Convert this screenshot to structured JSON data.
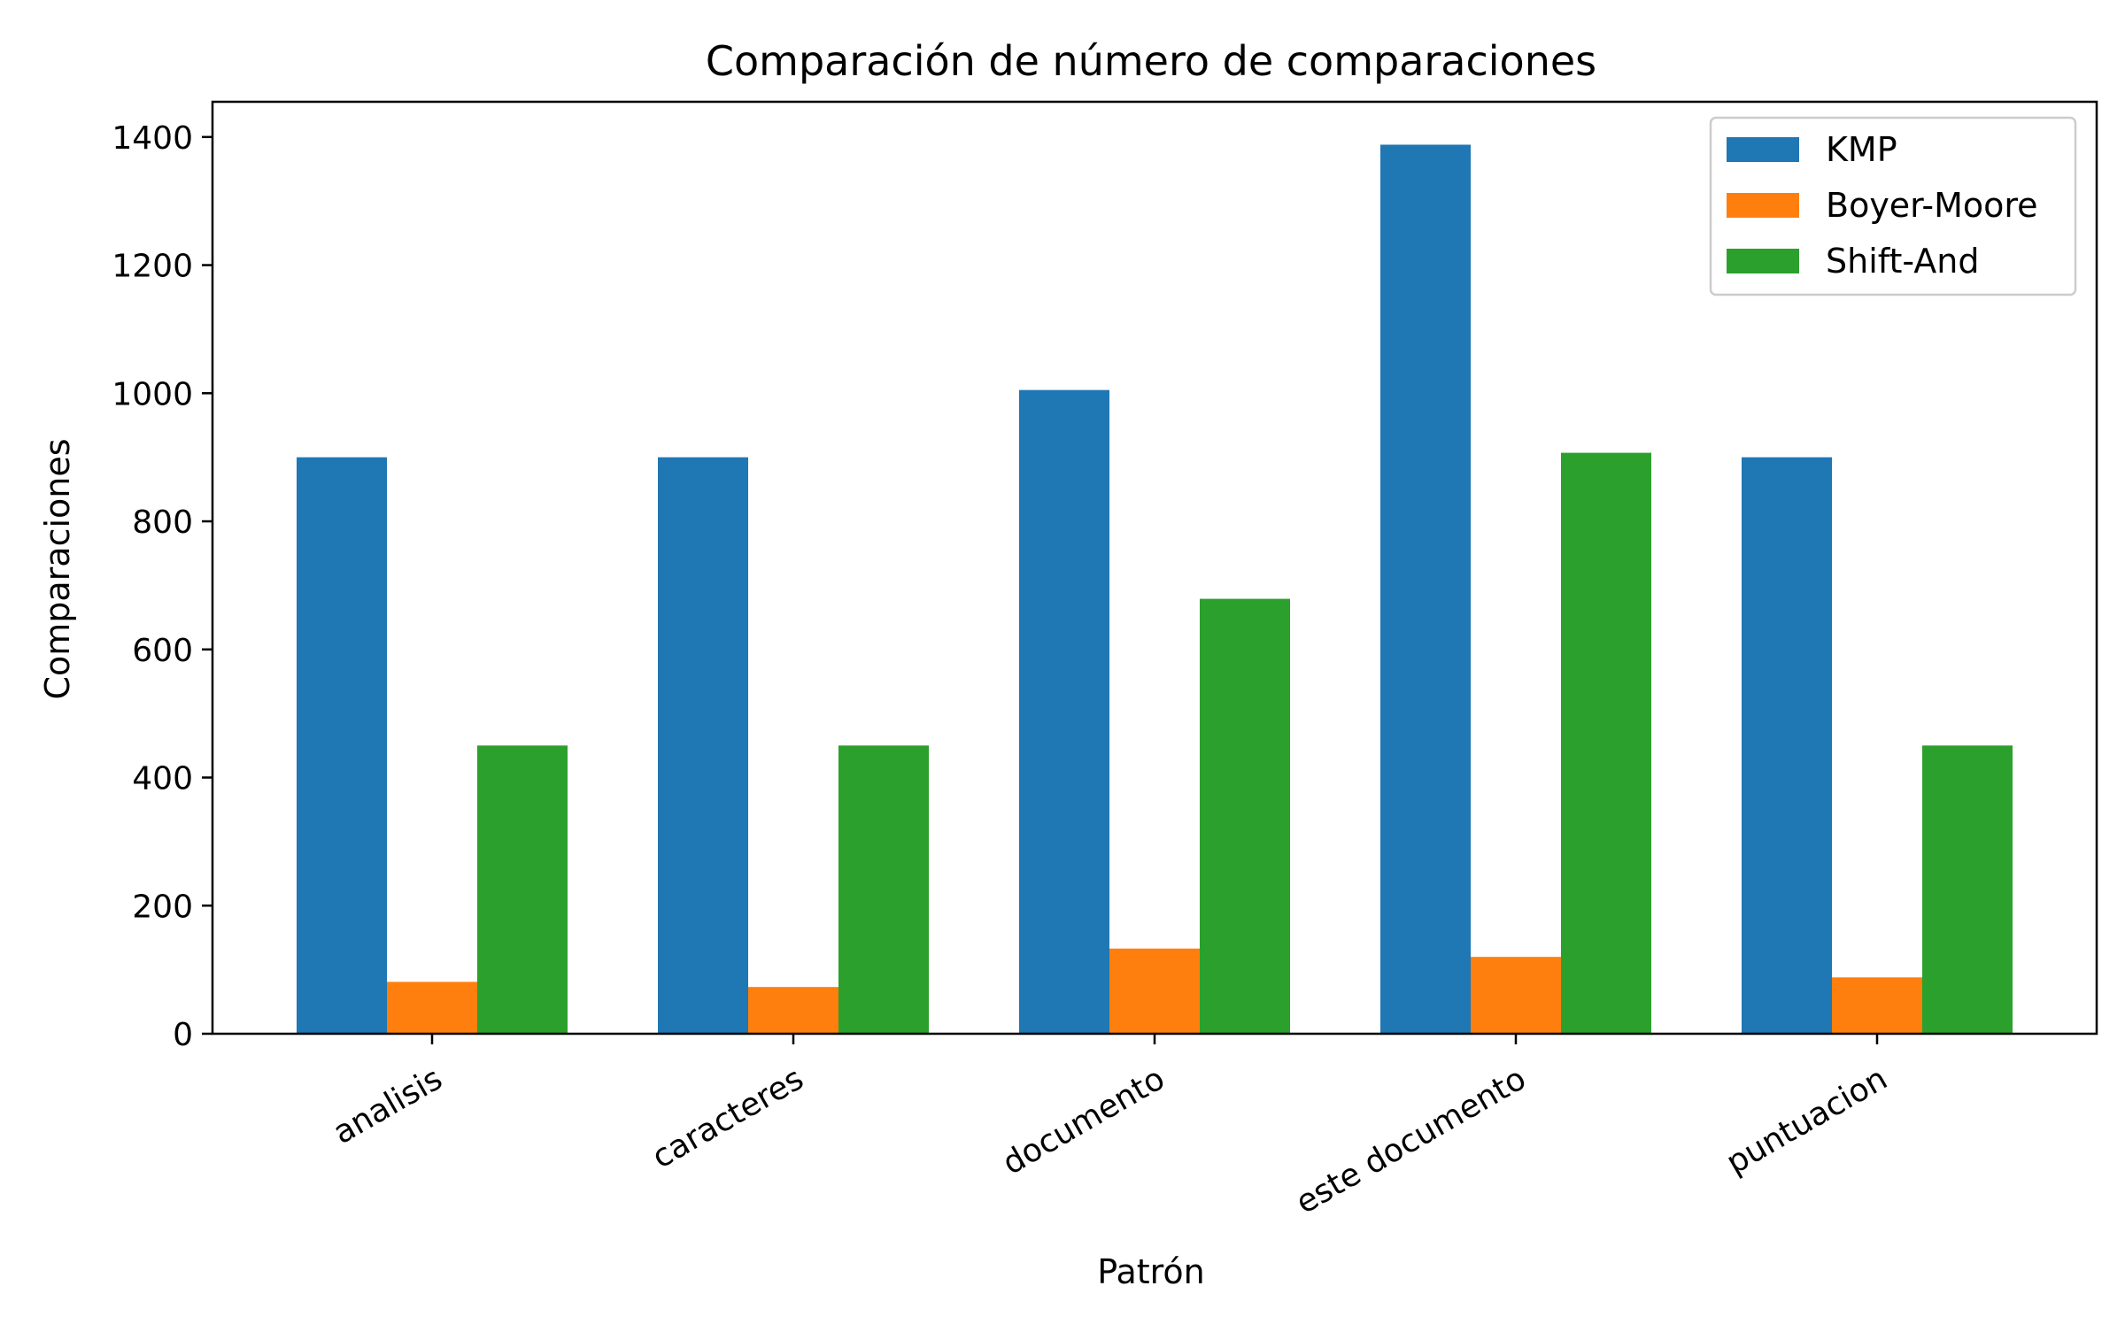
{
  "chart_data": {
    "type": "bar",
    "title": "Comparación de número de comparaciones",
    "xlabel": "Patrón",
    "ylabel": "Comparaciones",
    "categories": [
      "analisis",
      "caracteres",
      "documento",
      "este documento",
      "puntuacion"
    ],
    "ylim": [
      0,
      1455
    ],
    "yticks": [
      0,
      200,
      400,
      600,
      800,
      1000,
      1200,
      1400
    ],
    "grid": false,
    "legend_position": "top-right",
    "series": [
      {
        "name": "KMP",
        "color": "#1f77b4",
        "values": [
          900,
          900,
          1005,
          1388,
          900
        ]
      },
      {
        "name": "Boyer-Moore",
        "color": "#ff7f0e",
        "values": [
          81,
          73,
          133,
          120,
          88
        ]
      },
      {
        "name": "Shift-And",
        "color": "#2ca02c",
        "values": [
          450,
          450,
          679,
          907,
          450
        ]
      }
    ]
  }
}
